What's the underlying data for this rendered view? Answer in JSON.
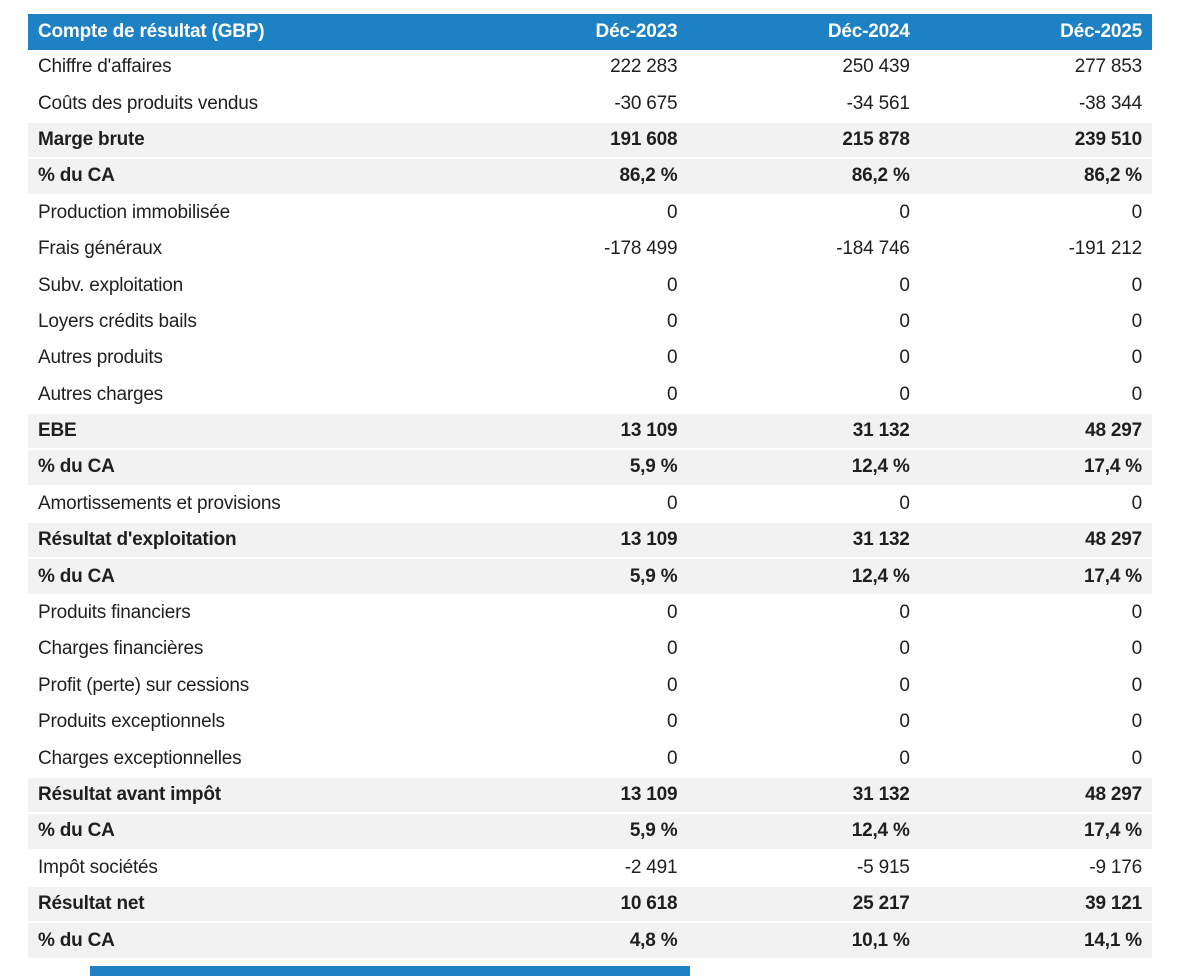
{
  "table": {
    "title": "Compte de résultat (GBP)",
    "columns": [
      "Déc-2023",
      "Déc-2024",
      "Déc-2025"
    ],
    "rows": [
      {
        "label": "Chiffre d'affaires",
        "values": [
          "222 283",
          "250 439",
          "277 853"
        ],
        "emphasis": false
      },
      {
        "label": "Coûts des produits vendus",
        "values": [
          "-30 675",
          "-34 561",
          "-38 344"
        ],
        "emphasis": false
      },
      {
        "label": "Marge brute",
        "values": [
          "191 608",
          "215 878",
          "239 510"
        ],
        "emphasis": true
      },
      {
        "label": "% du CA",
        "values": [
          "86,2 %",
          "86,2 %",
          "86,2 %"
        ],
        "emphasis": true
      },
      {
        "label": "Production immobilisée",
        "values": [
          "0",
          "0",
          "0"
        ],
        "emphasis": false
      },
      {
        "label": "Frais généraux",
        "values": [
          "-178 499",
          "-184 746",
          "-191 212"
        ],
        "emphasis": false
      },
      {
        "label": "Subv. exploitation",
        "values": [
          "0",
          "0",
          "0"
        ],
        "emphasis": false
      },
      {
        "label": "Loyers crédits bails",
        "values": [
          "0",
          "0",
          "0"
        ],
        "emphasis": false
      },
      {
        "label": "Autres produits",
        "values": [
          "0",
          "0",
          "0"
        ],
        "emphasis": false
      },
      {
        "label": "Autres charges",
        "values": [
          "0",
          "0",
          "0"
        ],
        "emphasis": false
      },
      {
        "label": "EBE",
        "values": [
          "13 109",
          "31 132",
          "48 297"
        ],
        "emphasis": true
      },
      {
        "label": "% du CA",
        "values": [
          "5,9 %",
          "12,4 %",
          "17,4 %"
        ],
        "emphasis": true
      },
      {
        "label": "Amortissements et provisions",
        "values": [
          "0",
          "0",
          "0"
        ],
        "emphasis": false
      },
      {
        "label": "Résultat d'exploitation",
        "values": [
          "13 109",
          "31 132",
          "48 297"
        ],
        "emphasis": true
      },
      {
        "label": "% du CA",
        "values": [
          "5,9 %",
          "12,4 %",
          "17,4 %"
        ],
        "emphasis": true
      },
      {
        "label": "Produits financiers",
        "values": [
          "0",
          "0",
          "0"
        ],
        "emphasis": false
      },
      {
        "label": "Charges financières",
        "values": [
          "0",
          "0",
          "0"
        ],
        "emphasis": false
      },
      {
        "label": "Profit (perte) sur cessions",
        "values": [
          "0",
          "0",
          "0"
        ],
        "emphasis": false
      },
      {
        "label": "Produits exceptionnels",
        "values": [
          "0",
          "0",
          "0"
        ],
        "emphasis": false
      },
      {
        "label": "Charges exceptionnelles",
        "values": [
          "0",
          "0",
          "0"
        ],
        "emphasis": false
      },
      {
        "label": "Résultat avant impôt",
        "values": [
          "13 109",
          "31 132",
          "48 297"
        ],
        "emphasis": true
      },
      {
        "label": "% du CA",
        "values": [
          "5,9 %",
          "12,4 %",
          "17,4 %"
        ],
        "emphasis": true
      },
      {
        "label": "Impôt sociétés",
        "values": [
          "-2 491",
          "-5 915",
          "-9 176"
        ],
        "emphasis": false
      },
      {
        "label": "Résultat net",
        "values": [
          "10 618",
          "25 217",
          "39 121"
        ],
        "emphasis": true
      },
      {
        "label": "% du CA",
        "values": [
          "4,8 %",
          "10,1 %",
          "14,1 %"
        ],
        "emphasis": true
      }
    ]
  },
  "colors": {
    "header_bg": "#1e81c4",
    "header_text": "#ffffff",
    "subtotal_bg": "#f2f2f2",
    "text": "#1f1f1f"
  },
  "chart_data": {
    "type": "table",
    "title": "Compte de résultat (GBP)",
    "columns": [
      "Compte de résultat (GBP)",
      "Déc-2023",
      "Déc-2024",
      "Déc-2025"
    ],
    "rows": [
      {
        "label": "Chiffre d'affaires",
        "values": [
          222283,
          250439,
          277853
        ],
        "unit": "GBP"
      },
      {
        "label": "Coûts des produits vendus",
        "values": [
          -30675,
          -34561,
          -38344
        ],
        "unit": "GBP"
      },
      {
        "label": "Marge brute",
        "values": [
          191608,
          215878,
          239510
        ],
        "unit": "GBP"
      },
      {
        "label": "% du CA",
        "values": [
          86.2,
          86.2,
          86.2
        ],
        "unit": "percent"
      },
      {
        "label": "Production immobilisée",
        "values": [
          0,
          0,
          0
        ],
        "unit": "GBP"
      },
      {
        "label": "Frais généraux",
        "values": [
          -178499,
          -184746,
          -191212
        ],
        "unit": "GBP"
      },
      {
        "label": "Subv. exploitation",
        "values": [
          0,
          0,
          0
        ],
        "unit": "GBP"
      },
      {
        "label": "Loyers crédits bails",
        "values": [
          0,
          0,
          0
        ],
        "unit": "GBP"
      },
      {
        "label": "Autres produits",
        "values": [
          0,
          0,
          0
        ],
        "unit": "GBP"
      },
      {
        "label": "Autres charges",
        "values": [
          0,
          0,
          0
        ],
        "unit": "GBP"
      },
      {
        "label": "EBE",
        "values": [
          13109,
          31132,
          48297
        ],
        "unit": "GBP"
      },
      {
        "label": "% du CA",
        "values": [
          5.9,
          12.4,
          17.4
        ],
        "unit": "percent"
      },
      {
        "label": "Amortissements et provisions",
        "values": [
          0,
          0,
          0
        ],
        "unit": "GBP"
      },
      {
        "label": "Résultat d'exploitation",
        "values": [
          13109,
          31132,
          48297
        ],
        "unit": "GBP"
      },
      {
        "label": "% du CA",
        "values": [
          5.9,
          12.4,
          17.4
        ],
        "unit": "percent"
      },
      {
        "label": "Produits financiers",
        "values": [
          0,
          0,
          0
        ],
        "unit": "GBP"
      },
      {
        "label": "Charges financières",
        "values": [
          0,
          0,
          0
        ],
        "unit": "GBP"
      },
      {
        "label": "Profit (perte) sur cessions",
        "values": [
          0,
          0,
          0
        ],
        "unit": "GBP"
      },
      {
        "label": "Produits exceptionnels",
        "values": [
          0,
          0,
          0
        ],
        "unit": "GBP"
      },
      {
        "label": "Charges exceptionnelles",
        "values": [
          0,
          0,
          0
        ],
        "unit": "GBP"
      },
      {
        "label": "Résultat avant impôt",
        "values": [
          13109,
          31132,
          48297
        ],
        "unit": "GBP"
      },
      {
        "label": "% du CA",
        "values": [
          5.9,
          12.4,
          17.4
        ],
        "unit": "percent"
      },
      {
        "label": "Impôt sociétés",
        "values": [
          -2491,
          -5915,
          -9176
        ],
        "unit": "GBP"
      },
      {
        "label": "Résultat net",
        "values": [
          10618,
          25217,
          39121
        ],
        "unit": "GBP"
      },
      {
        "label": "% du CA",
        "values": [
          4.8,
          10.1,
          14.1
        ],
        "unit": "percent"
      }
    ]
  }
}
